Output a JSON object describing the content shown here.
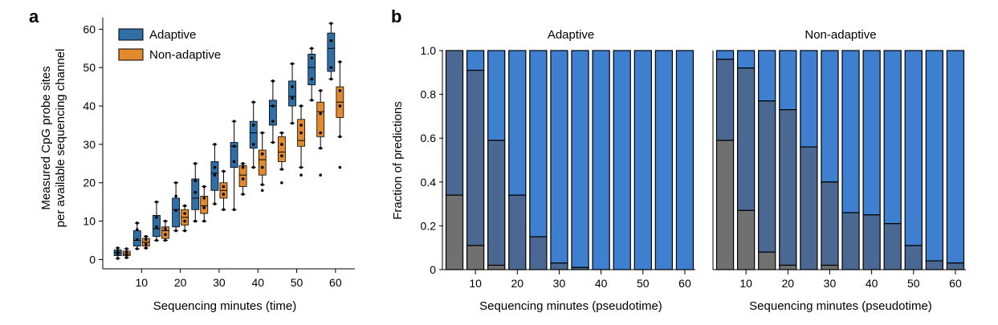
{
  "panels": {
    "a": "a",
    "b": "b"
  },
  "chart_data": [
    {
      "type": "box",
      "panel": "a",
      "xlabel": "Sequencing minutes (time)",
      "ylabel_lines": [
        "Measured CpG probe sites",
        "per available sequencing channel"
      ],
      "xlim": [
        0,
        65
      ],
      "ylim": [
        -2,
        63
      ],
      "xticks": [
        10,
        20,
        30,
        40,
        50,
        60
      ],
      "yticks": [
        0,
        10,
        20,
        30,
        40,
        50,
        60
      ],
      "colors": {
        "adaptive": "#2f6fa6",
        "non_adaptive": "#e48a2e"
      },
      "legend": {
        "position": "top-left",
        "entries": [
          "Adaptive",
          "Non-adaptive"
        ]
      },
      "series": [
        {
          "name": "Adaptive",
          "key": "adaptive",
          "boxes": [
            {
              "t": 5,
              "q1": 1.0,
              "med": 1.8,
              "q3": 2.5,
              "wlo": 0.3,
              "whi": 3.0,
              "points": [
                1.5,
                2.0
              ],
              "fliers": []
            },
            {
              "t": 10,
              "q1": 3.5,
              "med": 5.0,
              "q3": 7.5,
              "wlo": 2.8,
              "whi": 9.5,
              "points": [
                5.2,
                7.8
              ],
              "fliers": []
            },
            {
              "t": 15,
              "q1": 6.0,
              "med": 8.0,
              "q3": 11.5,
              "wlo": 5.0,
              "whi": 15.0,
              "points": [
                8.5,
                11.0
              ],
              "fliers": []
            },
            {
              "t": 20,
              "q1": 8.5,
              "med": 13.0,
              "q3": 16.0,
              "wlo": 7.5,
              "whi": 20.0,
              "points": [
                12.8,
                16.5
              ],
              "fliers": []
            },
            {
              "t": 25,
              "q1": 13.0,
              "med": 16.0,
              "q3": 21.0,
              "wlo": 10.0,
              "whi": 25.0,
              "points": [
                17.5,
                20.5
              ],
              "fliers": []
            },
            {
              "t": 30,
              "q1": 18.0,
              "med": 22.5,
              "q3": 25.5,
              "wlo": 14.5,
              "whi": 30.0,
              "points": [
                22.0,
                24.0
              ],
              "fliers": []
            },
            {
              "t": 35,
              "q1": 24.0,
              "med": 29.5,
              "q3": 30.5,
              "wlo": 13.0,
              "whi": 36.0,
              "points": [
                25.5,
                29.5
              ],
              "fliers": []
            },
            {
              "t": 40,
              "q1": 29.0,
              "med": 33.0,
              "q3": 36.0,
              "wlo": 24.0,
              "whi": 41.0,
              "points": [
                30.0,
                35.0
              ],
              "fliers": []
            },
            {
              "t": 45,
              "q1": 35.0,
              "med": 40.0,
              "q3": 41.5,
              "wlo": 30.5,
              "whi": 46.5,
              "points": [
                36.0,
                40.0
              ],
              "fliers": []
            },
            {
              "t": 50,
              "q1": 40.0,
              "med": 42.5,
              "q3": 46.5,
              "wlo": 35.5,
              "whi": 51.0,
              "points": [
                42.0,
                45.0
              ],
              "fliers": []
            },
            {
              "t": 55,
              "q1": 45.5,
              "med": 50.0,
              "q3": 53.5,
              "wlo": 41.5,
              "whi": 55.0,
              "points": [
                47.0,
                52.5
              ],
              "fliers": []
            },
            {
              "t": 60,
              "q1": 49.0,
              "med": 55.0,
              "q3": 59.0,
              "wlo": 47.0,
              "whi": 61.5,
              "points": [
                50.0,
                57.0
              ],
              "fliers": []
            }
          ]
        },
        {
          "name": "Non-adaptive",
          "key": "non_adaptive",
          "boxes": [
            {
              "t": 5,
              "q1": 1.0,
              "med": 1.5,
              "q3": 2.2,
              "wlo": 0.5,
              "whi": 2.8,
              "points": [
                1.2,
                2.0
              ],
              "fliers": []
            },
            {
              "t": 10,
              "q1": 3.5,
              "med": 4.5,
              "q3": 5.5,
              "wlo": 3.0,
              "whi": 6.0,
              "points": [
                4.0,
                5.2
              ],
              "fliers": []
            },
            {
              "t": 15,
              "q1": 5.5,
              "med": 7.5,
              "q3": 8.5,
              "wlo": 5.0,
              "whi": 10.0,
              "points": [
                6.5,
                8.0
              ],
              "fliers": []
            },
            {
              "t": 20,
              "q1": 9.0,
              "med": 11.0,
              "q3": 13.0,
              "wlo": 7.5,
              "whi": 14.0,
              "points": [
                10.0,
                12.0
              ],
              "fliers": []
            },
            {
              "t": 25,
              "q1": 12.0,
              "med": 14.0,
              "q3": 16.5,
              "wlo": 10.0,
              "whi": 19.0,
              "points": [
                13.5,
                16.0
              ],
              "fliers": []
            },
            {
              "t": 30,
              "q1": 16.0,
              "med": 18.0,
              "q3": 20.0,
              "wlo": 13.0,
              "whi": 23.0,
              "points": [
                17.0,
                19.0
              ],
              "fliers": []
            },
            {
              "t": 35,
              "q1": 19.0,
              "med": 22.0,
              "q3": 24.5,
              "wlo": 17.0,
              "whi": 25.0,
              "points": [
                21.0,
                24.0
              ],
              "fliers": []
            },
            {
              "t": 40,
              "q1": 22.0,
              "med": 26.0,
              "q3": 28.5,
              "wlo": 19.5,
              "whi": 33.0,
              "points": [
                24.0,
                27.5
              ],
              "fliers": [
                18.0
              ]
            },
            {
              "t": 45,
              "q1": 25.5,
              "med": 28.0,
              "q3": 32.0,
              "wlo": 23.5,
              "whi": 33.0,
              "points": [
                27.0,
                30.0
              ],
              "fliers": [
                20.0
              ]
            },
            {
              "t": 50,
              "q1": 29.5,
              "med": 31.0,
              "q3": 36.5,
              "wlo": 24.0,
              "whi": 40.0,
              "points": [
                33.0,
                35.0
              ],
              "fliers": [
                22.0
              ]
            },
            {
              "t": 55,
              "q1": 32.0,
              "med": 38.5,
              "q3": 41.0,
              "wlo": 29.0,
              "whi": 44.0,
              "points": [
                33.0,
                38.0
              ],
              "fliers": [
                22.0
              ]
            },
            {
              "t": 60,
              "q1": 37.0,
              "med": 41.0,
              "q3": 45.0,
              "wlo": 32.0,
              "whi": 51.5,
              "points": [
                40.0,
                44.0
              ],
              "fliers": [
                24.0
              ]
            }
          ]
        }
      ]
    },
    {
      "type": "stacked-bar",
      "panel": "b",
      "title": "Adaptive",
      "xlabel": "Sequencing minutes (pseudotime)",
      "ylabel": "Fraction of predictions",
      "ylim": [
        0,
        1
      ],
      "yticks": [
        0,
        0.2,
        0.4,
        0.6,
        0.8,
        1.0
      ],
      "ytick_labels": [
        "0",
        "0.2",
        "0.4",
        "0.6",
        "0.8",
        "1.0"
      ],
      "xticks": [
        10,
        20,
        30,
        40,
        50,
        60
      ],
      "bar_minutes": [
        5,
        10,
        15,
        20,
        25,
        30,
        35,
        40,
        45,
        50,
        55,
        60
      ],
      "layer_colors": [
        "#707070",
        "#4a6891",
        "#3f7fd0"
      ],
      "gray_fraction": [
        0.34,
        0.11,
        0.02,
        0.0,
        0.0,
        0.0,
        0.0,
        0.0,
        0.0,
        0.0,
        0.0,
        0.0
      ],
      "cumulative_mid": [
        1.0,
        0.91,
        0.59,
        0.34,
        0.15,
        0.03,
        0.01,
        0.0,
        0.0,
        0.0,
        0.0,
        0.0
      ]
    },
    {
      "type": "stacked-bar",
      "panel": "b",
      "title": "Non-adaptive",
      "xlabel": "Sequencing minutes (pseudotime)",
      "ylim": [
        0,
        1
      ],
      "xticks": [
        10,
        20,
        30,
        40,
        50,
        60
      ],
      "bar_minutes": [
        5,
        10,
        15,
        20,
        25,
        30,
        35,
        40,
        45,
        50,
        55,
        60
      ],
      "layer_colors": [
        "#707070",
        "#4a6891",
        "#3f7fd0"
      ],
      "gray_fraction": [
        0.59,
        0.27,
        0.08,
        0.02,
        0.0,
        0.02,
        0.0,
        0.0,
        0.0,
        0.0,
        0.0,
        0.0
      ],
      "cumulative_mid": [
        0.96,
        0.92,
        0.77,
        0.73,
        0.56,
        0.4,
        0.26,
        0.25,
        0.21,
        0.11,
        0.04,
        0.03
      ]
    }
  ]
}
